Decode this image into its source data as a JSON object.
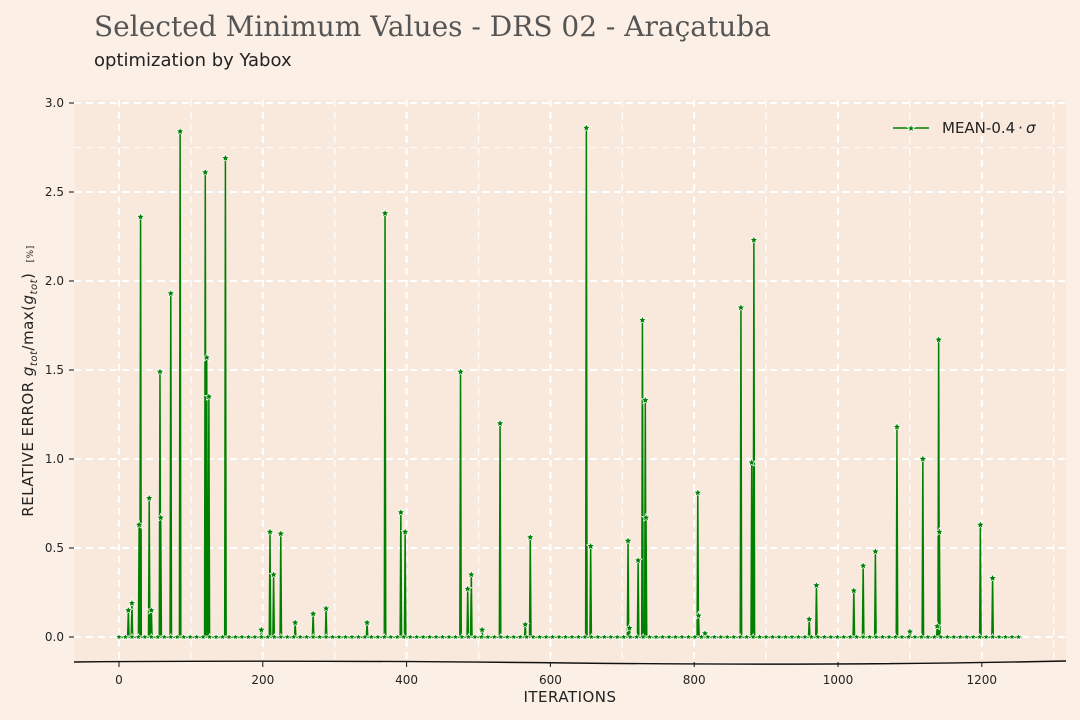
{
  "chart_data": {
    "type": "line",
    "title": "Selected Minimum Values - DRS 02 - Araçatuba",
    "subtitle": "optimization by Yabox",
    "xlabel": "ITERATIONS",
    "ylabel": "RELATIVE ERROR",
    "ylabel_math": "g",
    "ylabel_sub": "tot",
    "ylabel_mid": "/max(",
    "ylabel_end": ")",
    "ylabel_unit": "[%]",
    "xlim": [
      -60,
      1320
    ],
    "ylim": [
      -0.15,
      3.0
    ],
    "xticks": [
      0,
      200,
      400,
      600,
      800,
      1000,
      1200
    ],
    "yticks": [
      0.0,
      0.5,
      1.0,
      1.5,
      2.0,
      2.5,
      3.0
    ],
    "ytick_labels": [
      "0.0",
      "0.5",
      "1.0",
      "1.5",
      "2.0",
      "2.5",
      "3.0"
    ],
    "grid": true,
    "legend_position": "top-right",
    "colors": {
      "line": "#008000",
      "marker": "#008000",
      "marker_edge": "#ffffff",
      "grid": "#ffffff",
      "plot_bg": "#f9e8dc",
      "page_bg": "#fcf0e6"
    },
    "series": [
      {
        "name": "MEAN-0.4·σ",
        "legend_main": "MEAN-0.4",
        "legend_sym": "σ",
        "peaks": [
          [
            13,
            0.15
          ],
          [
            18,
            0.19
          ],
          [
            28,
            0.63
          ],
          [
            30,
            2.36
          ],
          [
            42,
            0.78
          ],
          [
            45,
            0.15
          ],
          [
            57,
            1.49
          ],
          [
            58,
            0.67
          ],
          [
            72,
            1.93
          ],
          [
            85,
            2.84
          ],
          [
            120,
            2.61
          ],
          [
            122,
            1.57
          ],
          [
            125,
            1.35
          ],
          [
            148,
            2.69
          ],
          [
            198,
            0.04
          ],
          [
            210,
            0.59
          ],
          [
            215,
            0.35
          ],
          [
            225,
            0.58
          ],
          [
            245,
            0.08
          ],
          [
            270,
            0.13
          ],
          [
            288,
            0.16
          ],
          [
            345,
            0.08
          ],
          [
            370,
            2.38
          ],
          [
            392,
            0.7
          ],
          [
            398,
            0.59
          ],
          [
            475,
            1.49
          ],
          [
            485,
            0.27
          ],
          [
            490,
            0.35
          ],
          [
            505,
            0.04
          ],
          [
            530,
            1.2
          ],
          [
            565,
            0.07
          ],
          [
            572,
            0.56
          ],
          [
            650,
            2.86
          ],
          [
            656,
            0.51
          ],
          [
            708,
            0.54
          ],
          [
            710,
            0.05
          ],
          [
            722,
            0.43
          ],
          [
            728,
            1.78
          ],
          [
            732,
            1.33
          ],
          [
            733,
            0.67
          ],
          [
            805,
            0.81
          ],
          [
            806,
            0.12
          ],
          [
            815,
            0.02
          ],
          [
            865,
            1.85
          ],
          [
            880,
            0.98
          ],
          [
            883,
            2.23
          ],
          [
            960,
            0.1
          ],
          [
            970,
            0.29
          ],
          [
            1022,
            0.26
          ],
          [
            1035,
            0.4
          ],
          [
            1052,
            0.48
          ],
          [
            1082,
            1.18
          ],
          [
            1100,
            0.03
          ],
          [
            1118,
            1.0
          ],
          [
            1138,
            0.06
          ],
          [
            1140,
            1.67
          ],
          [
            1141,
            0.59
          ],
          [
            1198,
            0.63
          ],
          [
            1215,
            0.33
          ]
        ]
      }
    ]
  }
}
